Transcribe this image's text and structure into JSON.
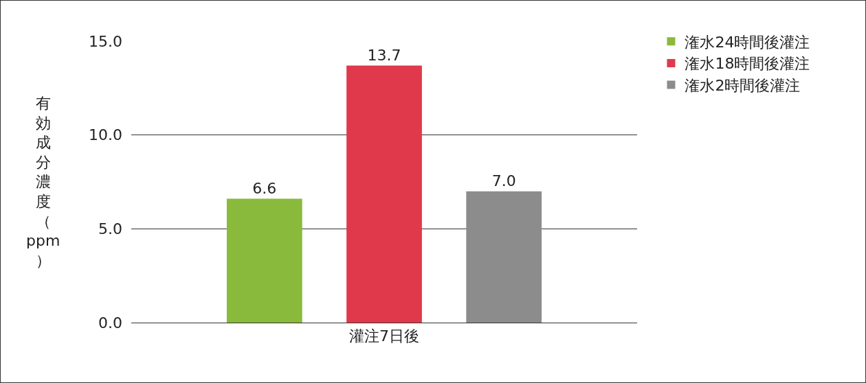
{
  "chart_data": {
    "type": "bar",
    "ylabel": "有効成分濃度（ppm）",
    "categories": [
      "灌注7日後"
    ],
    "series": [
      {
        "name": "潅水24時間後灌注",
        "color": "#8aba3c",
        "values": [
          6.6
        ],
        "value_labels": [
          "6.6"
        ]
      },
      {
        "name": "潅水18時間後灌注",
        "color": "#e0394b",
        "values": [
          13.7
        ],
        "value_labels": [
          "13.7"
        ]
      },
      {
        "name": "潅水2時間後灌注",
        "color": "#8c8c8c",
        "values": [
          7.0
        ],
        "value_labels": [
          "7.0"
        ]
      }
    ],
    "ylim": [
      0,
      15
    ],
    "yticks": [
      {
        "value": 0,
        "label": "0.0"
      },
      {
        "value": 5,
        "label": "5.0"
      },
      {
        "value": 10,
        "label": "10.0"
      },
      {
        "value": 15,
        "label": "15.0"
      }
    ],
    "grid": "y",
    "legend": "top right"
  }
}
